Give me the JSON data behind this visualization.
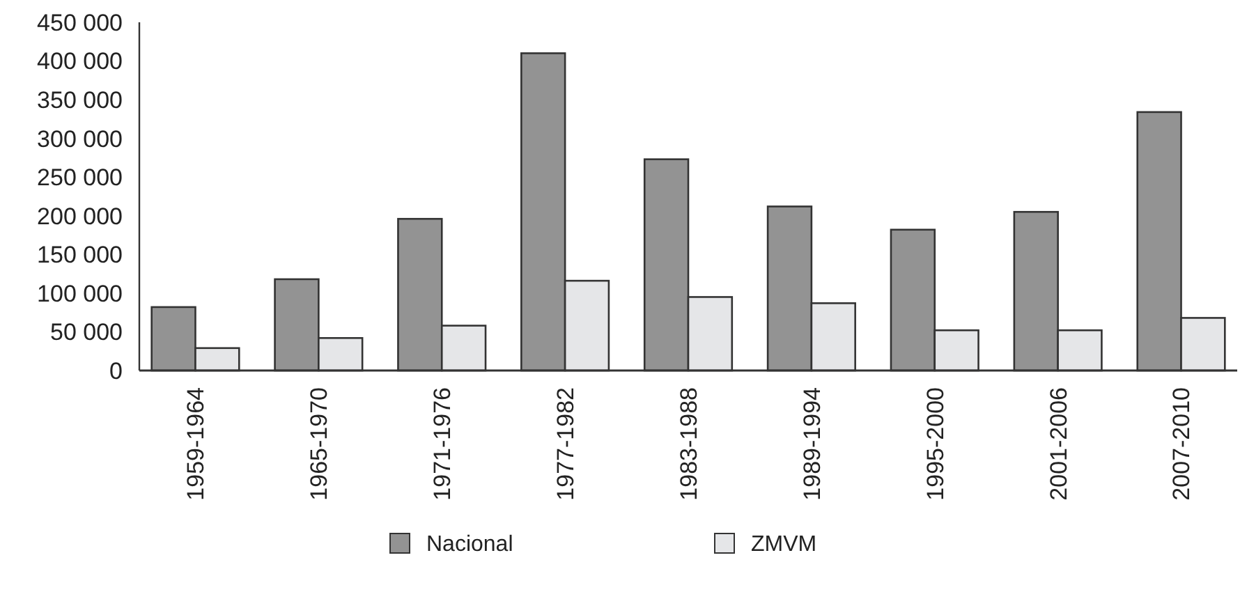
{
  "chart_data": {
    "type": "bar",
    "categories": [
      "1959-1964",
      "1965-1970",
      "1971-1976",
      "1977-1982",
      "1983-1988",
      "1989-1994",
      "1995-2000",
      "2001-2006",
      "2007-2010"
    ],
    "series": [
      {
        "name": "Nacional",
        "color": "#939393",
        "values": [
          82000,
          118000,
          196000,
          410000,
          273000,
          212000,
          182000,
          205000,
          334000
        ]
      },
      {
        "name": "ZMVM",
        "color": "#e5e6e8",
        "values": [
          29000,
          42000,
          58000,
          116000,
          95000,
          87000,
          52000,
          52000,
          68000
        ]
      }
    ],
    "ylim": [
      0,
      450000
    ],
    "yticks": [
      {
        "value": 0,
        "label": "0"
      },
      {
        "value": 50000,
        "label": "50 000"
      },
      {
        "value": 100000,
        "label": "100 000"
      },
      {
        "value": 150000,
        "label": "150 000"
      },
      {
        "value": 200000,
        "label": "200 000"
      },
      {
        "value": 250000,
        "label": "250 000"
      },
      {
        "value": 300000,
        "label": "300 000"
      },
      {
        "value": 350000,
        "label": "350 000"
      },
      {
        "value": 400000,
        "label": "400 000"
      },
      {
        "value": 450000,
        "label": "450 000"
      }
    ],
    "grid": false,
    "legend": "bottom"
  }
}
